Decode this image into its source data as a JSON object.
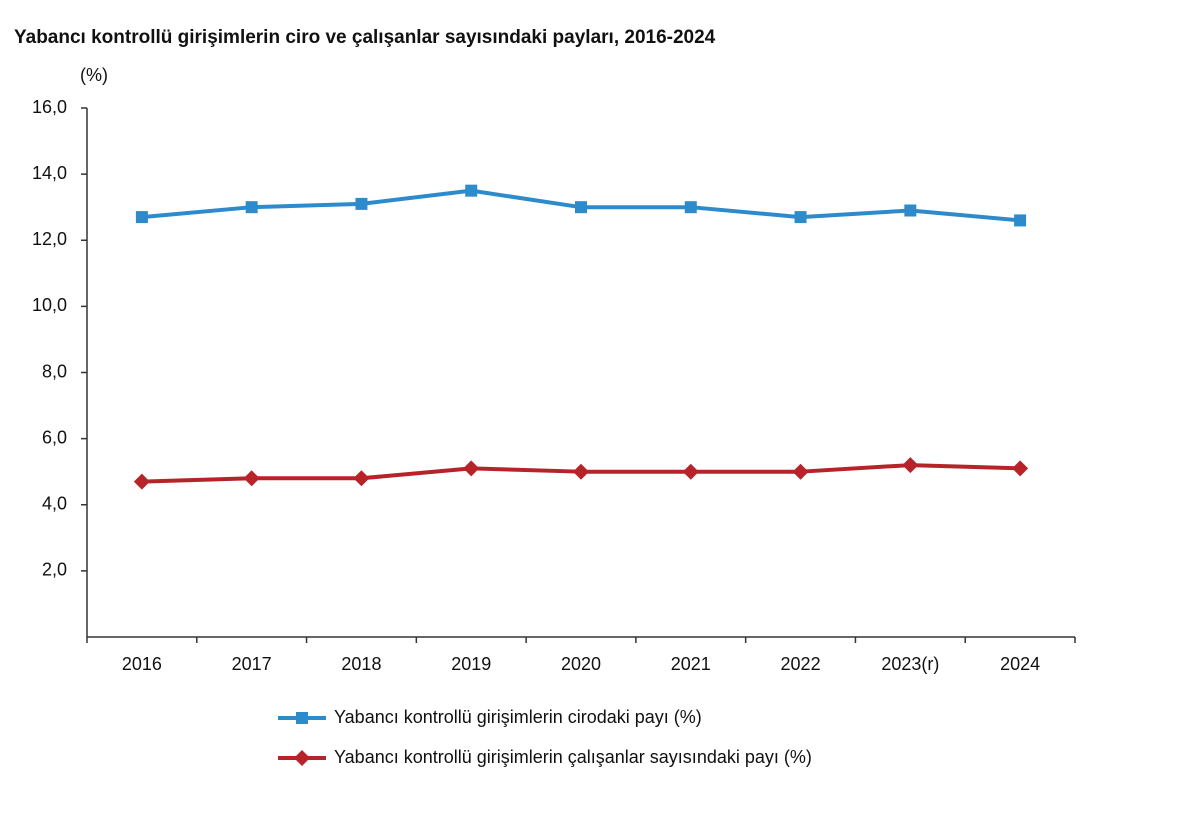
{
  "chart_data": {
    "type": "line",
    "title": "Yabancı kontrollü girişimlerin ciro ve çalışanlar sayısındaki payları, 2016-2024",
    "y_label": "(%)",
    "categories": [
      "2016",
      "2017",
      "2018",
      "2019",
      "2020",
      "2021",
      "2022",
      "2023(r)",
      "2024"
    ],
    "series": [
      {
        "name": "Yabancı kontrollü girişimlerin cirodaki payı (%)",
        "color": "#2e8bcb",
        "marker": "square",
        "values": [
          12.7,
          13.0,
          13.1,
          13.5,
          13.0,
          13.0,
          12.7,
          12.9,
          12.6
        ]
      },
      {
        "name": "Yabancı kontrollü girişimlerin çalışanlar sayısındaki payı (%)",
        "color": "#b8232a",
        "marker": "diamond",
        "values": [
          4.7,
          4.8,
          4.8,
          5.1,
          5.0,
          5.0,
          5.0,
          5.2,
          5.1
        ]
      }
    ],
    "ylim": [
      0,
      16
    ],
    "yticks": [
      {
        "value": 2,
        "label": "2,0"
      },
      {
        "value": 4,
        "label": "4,0"
      },
      {
        "value": 6,
        "label": "6,0"
      },
      {
        "value": 8,
        "label": "8,0"
      },
      {
        "value": 10,
        "label": "10,0"
      },
      {
        "value": 12,
        "label": "12,0"
      },
      {
        "value": 14,
        "label": "14,0"
      },
      {
        "value": 16,
        "label": "16,0"
      }
    ],
    "grid": false,
    "legend": "bottom"
  }
}
